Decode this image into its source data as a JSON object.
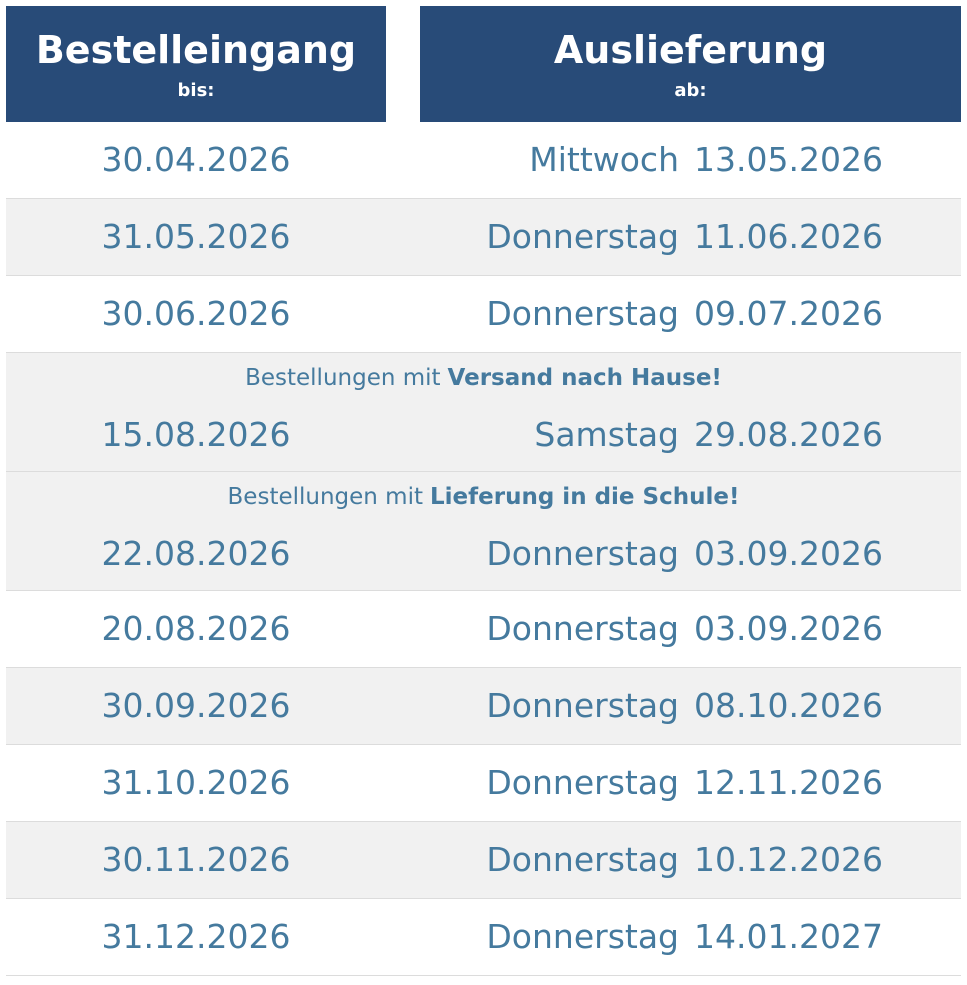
{
  "header": {
    "order": {
      "title": "Bestelleingang",
      "sub": "bis:"
    },
    "delivery": {
      "title": "Auslieferung",
      "sub": "ab:"
    }
  },
  "rows": [
    {
      "order": "30.04.2026",
      "weekday": "Mittwoch",
      "delivery": "13.05.2026"
    },
    {
      "order": "31.05.2026",
      "weekday": "Donnerstag",
      "delivery": "11.06.2026"
    },
    {
      "order": "30.06.2026",
      "weekday": "Donnerstag",
      "delivery": "09.07.2026"
    },
    {
      "note": {
        "text": "Bestellungen mit",
        "bold": "Versand nach Hause!"
      },
      "order": "15.08.2026",
      "weekday": "Samstag",
      "delivery": "29.08.2026"
    },
    {
      "note": {
        "text": "Bestellungen mit",
        "bold": "Lieferung in die Schule!"
      },
      "order": "22.08.2026",
      "weekday": "Donnerstag",
      "delivery": "03.09.2026"
    },
    {
      "order": "20.08.2026",
      "weekday": "Donnerstag",
      "delivery": "03.09.2026"
    },
    {
      "order": "30.09.2026",
      "weekday": "Donnerstag",
      "delivery": "08.10.2026"
    },
    {
      "order": "31.10.2026",
      "weekday": "Donnerstag",
      "delivery": "12.11.2026"
    },
    {
      "order": "30.11.2026",
      "weekday": "Donnerstag",
      "delivery": "10.12.2026"
    },
    {
      "order": "31.12.2026",
      "weekday": "Donnerstag",
      "delivery": "14.01.2027"
    }
  ]
}
